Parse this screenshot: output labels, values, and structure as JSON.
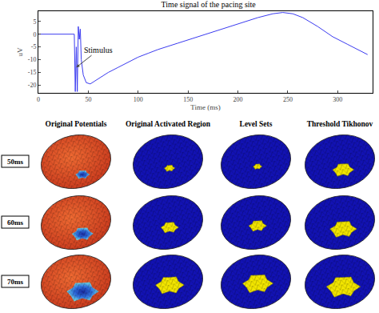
{
  "chart_data": {
    "type": "line",
    "title": "Time signal of the pacing site",
    "x_label": "Time (ms)",
    "y_label": "uV",
    "x": [
      0,
      30,
      36,
      37,
      38,
      39,
      40,
      41,
      42,
      43,
      45,
      48,
      52,
      56,
      60,
      65,
      70,
      80,
      90,
      100,
      110,
      120,
      140,
      160,
      180,
      200,
      220,
      235,
      245,
      255,
      265,
      280,
      295,
      310,
      320,
      330
    ],
    "series": [
      {
        "name": "Time signal of the pacing site",
        "color": "#3b3bf0",
        "values": [
          0,
          0,
          0,
          -22.5,
          -5,
          -22.5,
          3,
          -2,
          2,
          -10,
          -16,
          -19,
          -19.5,
          -18.5,
          -17.5,
          -16,
          -15,
          -13,
          -11,
          -9,
          -7.5,
          -6,
          -3.5,
          -1,
          1.5,
          4,
          6.5,
          8,
          8.5,
          8,
          6.5,
          3,
          -1,
          -4,
          -6,
          -8
        ]
      }
    ],
    "xlim": [
      0,
      335
    ],
    "xticks": [
      0,
      50,
      100,
      150,
      200,
      250,
      300
    ],
    "ylim": [
      -23,
      9
    ],
    "yticks": [
      -20,
      -15,
      -10,
      -5,
      0,
      5
    ],
    "annotations": [
      {
        "text": "Stimulus",
        "x": 38,
        "y": -13
      }
    ]
  },
  "panels": {
    "columns": [
      "Original Potentials",
      "Original Activated Region",
      "Level Sets",
      "Threshold Tikhonov"
    ],
    "rows": [
      "50ms",
      "60ms",
      "70ms"
    ]
  }
}
